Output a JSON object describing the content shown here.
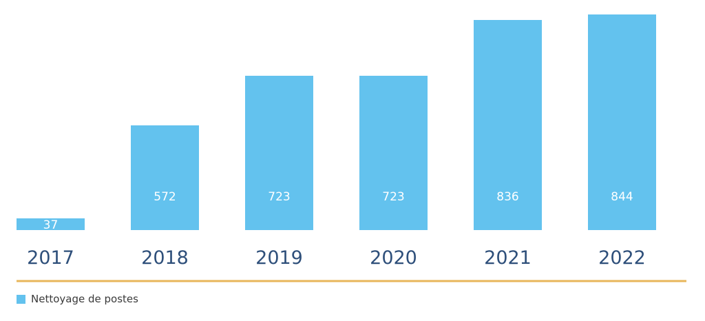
{
  "chart_data": {
    "type": "bar",
    "categories": [
      "2017",
      "2018",
      "2019",
      "2020",
      "2021",
      "2022"
    ],
    "series": [
      {
        "name": "Nettoyage de postes",
        "values": [
          37,
          572,
          723,
          723,
          836,
          844
        ]
      }
    ],
    "data_labels": [
      "37",
      "572",
      "723",
      "723",
      "836",
      "844"
    ],
    "bar_color": "#63c2ee",
    "axis_line_color": "#e8b65a",
    "category_label_color": "#2e4f7a",
    "legend_position": "bottom-left",
    "grid": false
  },
  "legend": {
    "label": "Nettoyage de postes"
  }
}
